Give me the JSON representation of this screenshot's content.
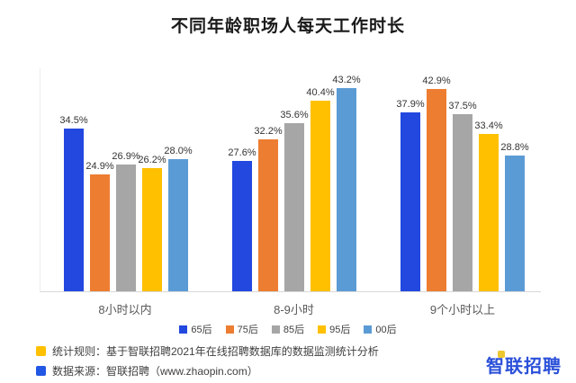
{
  "title": "不同年龄职场人每天工作时长",
  "chart_data": {
    "type": "bar",
    "title": "不同年龄职场人每天工作时长",
    "categories": [
      "8小时以内",
      "8-9小时",
      "9个小时以上"
    ],
    "series": [
      {
        "name": "65后",
        "color": "#2248DF",
        "values": [
          34.5,
          27.6,
          37.9
        ]
      },
      {
        "name": "75后",
        "color": "#ED7D31",
        "values": [
          24.9,
          32.2,
          42.9
        ]
      },
      {
        "name": "85后",
        "color": "#A6A6A6",
        "values": [
          26.9,
          35.6,
          37.5
        ]
      },
      {
        "name": "95后",
        "color": "#FFC000",
        "values": [
          26.2,
          40.4,
          33.4
        ]
      },
      {
        "name": "00后",
        "color": "#5B9BD5",
        "values": [
          28.0,
          43.2,
          28.8
        ]
      }
    ],
    "value_suffix": "%",
    "ylim": [
      0,
      50
    ],
    "grid": false,
    "legend_position": "bottom",
    "axis_color": "#D9D9D9"
  },
  "notes": [
    {
      "marker_color": "#FFC000",
      "text": "统计规则：基于智联招聘2021年在线招聘数据库的数据监测统计分析"
    },
    {
      "marker_color": "#2257E5",
      "text": "数据来源：智联招聘（www.zhaopin.com）"
    }
  ],
  "logo": {
    "text": "智联招聘",
    "color": "#2B50D9",
    "accent_color": "#EEC62F"
  }
}
